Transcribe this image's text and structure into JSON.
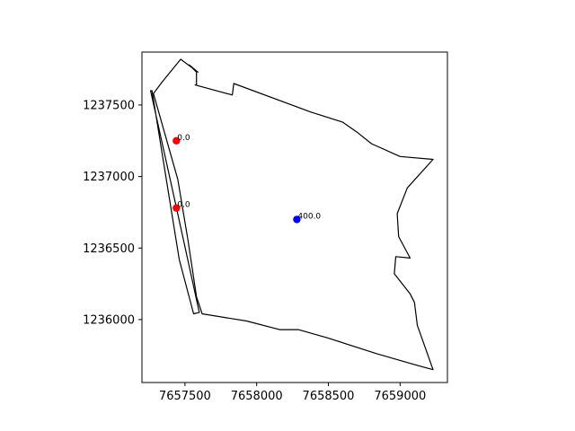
{
  "chart_data": {
    "type": "scatter",
    "title": "",
    "xlabel": "",
    "ylabel": "",
    "xlim": [
      7657200,
      7659330
    ],
    "ylim": [
      1235560,
      1237870
    ],
    "grid": false,
    "legend": "none",
    "x_ticks": [
      7657500,
      7658000,
      7658500,
      7659000
    ],
    "x_tick_labels": [
      "7657500",
      "7658000",
      "7658500",
      "7659000"
    ],
    "y_ticks": [
      1236000,
      1236500,
      1237000,
      1237500
    ],
    "y_tick_labels": [
      "1236000",
      "1236500",
      "1237000",
      "1237500"
    ],
    "outline_color": "#000000",
    "outlines": [
      {
        "points": [
          [
            7657590,
            1237730
          ],
          [
            7657530,
            1237780
          ],
          [
            7657580,
            1237730
          ],
          [
            7657580,
            1237640
          ],
          [
            7657570,
            1237640
          ],
          [
            7657830,
            1237570
          ],
          [
            7657840,
            1237650
          ],
          [
            7658380,
            1237450
          ],
          [
            7658600,
            1237380
          ],
          [
            7658700,
            1237310
          ],
          [
            7658800,
            1237230
          ],
          [
            7659000,
            1237140
          ],
          [
            7659230,
            1237120
          ],
          [
            7659050,
            1236920
          ],
          [
            7658980,
            1236740
          ],
          [
            7658990,
            1236580
          ],
          [
            7659070,
            1236430
          ],
          [
            7658970,
            1236440
          ],
          [
            7658960,
            1236320
          ],
          [
            7659070,
            1236180
          ],
          [
            7659100,
            1236120
          ],
          [
            7659120,
            1235960
          ],
          [
            7659230,
            1235650
          ],
          [
            7659120,
            1235680
          ],
          [
            7658840,
            1235760
          ],
          [
            7658500,
            1235870
          ],
          [
            7658290,
            1235930
          ],
          [
            7658160,
            1235930
          ],
          [
            7657930,
            1235990
          ],
          [
            7657620,
            1236040
          ],
          [
            7657580,
            1236160
          ],
          [
            7657520,
            1236560
          ],
          [
            7657450,
            1236980
          ],
          [
            7657280,
            1237580
          ],
          [
            7657340,
            1237660
          ],
          [
            7657470,
            1237820
          ]
        ]
      },
      {
        "points": [
          [
            7657260,
            1237600
          ],
          [
            7657430,
            1236830
          ],
          [
            7657600,
            1236050
          ],
          [
            7657560,
            1236040
          ],
          [
            7657460,
            1236420
          ],
          [
            7657270,
            1237600
          ]
        ]
      }
    ],
    "series": [
      {
        "color": "#ff0000",
        "points": [
          {
            "x": 7657440,
            "y": 1237250,
            "label": "0.0"
          },
          {
            "x": 7657440,
            "y": 1236780,
            "label": "0.0"
          }
        ]
      },
      {
        "color": "#0000ff",
        "points": [
          {
            "x": 7658280,
            "y": 1236700,
            "label": "400.0"
          }
        ]
      }
    ]
  }
}
